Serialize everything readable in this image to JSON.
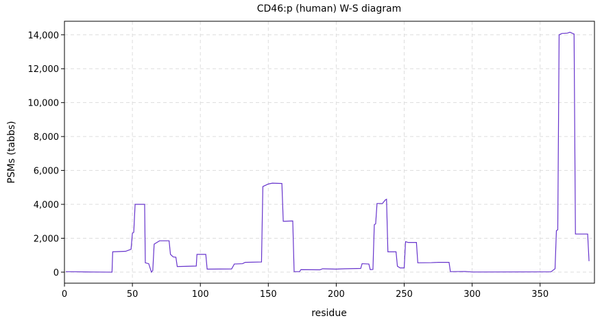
{
  "chart_data": {
    "type": "line",
    "title": "CD46:p (human) W-S diagram",
    "xlabel": "residue",
    "ylabel": "PSMs (tabbs)",
    "x": [
      1,
      10,
      20,
      35,
      35.5,
      45,
      49,
      50,
      51,
      52,
      59,
      59.5,
      62,
      64,
      65,
      66,
      68,
      70,
      77,
      78,
      80,
      82,
      83,
      97,
      97.5,
      104,
      105,
      123,
      125,
      131,
      133,
      145,
      146,
      150,
      153,
      160,
      161,
      168,
      169,
      173,
      174,
      188,
      190,
      200,
      206,
      218,
      219,
      224,
      225,
      227,
      228,
      229,
      230,
      234,
      236,
      237,
      238,
      244,
      245,
      247,
      250,
      251,
      253,
      259,
      260,
      270,
      275,
      283,
      284,
      295,
      300,
      310,
      358,
      361,
      362,
      363,
      364,
      366,
      370,
      372,
      374,
      375,
      376,
      385,
      386
    ],
    "series": [
      {
        "name": "PSMs",
        "color": "#6633cc",
        "values": [
          30,
          20,
          10,
          0,
          1200,
          1230,
          1350,
          2300,
          2350,
          4000,
          4000,
          550,
          500,
          0,
          100,
          1650,
          1750,
          1850,
          1850,
          1050,
          900,
          880,
          330,
          360,
          1050,
          1050,
          180,
          190,
          480,
          500,
          580,
          600,
          5050,
          5200,
          5250,
          5230,
          3000,
          3020,
          30,
          30,
          150,
          140,
          200,
          180,
          200,
          220,
          500,
          480,
          150,
          160,
          2800,
          2850,
          4050,
          4050,
          4250,
          4300,
          1200,
          1200,
          350,
          250,
          250,
          1800,
          1750,
          1750,
          550,
          560,
          580,
          580,
          30,
          40,
          10,
          10,
          20,
          200,
          2450,
          2500,
          14000,
          14080,
          14100,
          14150,
          14080,
          14050,
          2250,
          2250,
          650
        ]
      }
    ],
    "xlim": [
      0,
      390
    ],
    "ylim": [
      -650,
      14800
    ],
    "xticks": [
      0,
      50,
      100,
      150,
      200,
      250,
      300,
      350
    ],
    "yticks": [
      0,
      {
        "value": 2000,
        "label": "2,000"
      },
      {
        "value": 4000,
        "label": "4,000"
      },
      {
        "value": 6000,
        "label": "6,000"
      },
      {
        "value": 8000,
        "label": "8,000"
      },
      {
        "value": 10000,
        "label": "10,000"
      },
      {
        "value": 12000,
        "label": "12,000"
      },
      {
        "value": 14000,
        "label": "14,000"
      }
    ],
    "grid": true
  }
}
